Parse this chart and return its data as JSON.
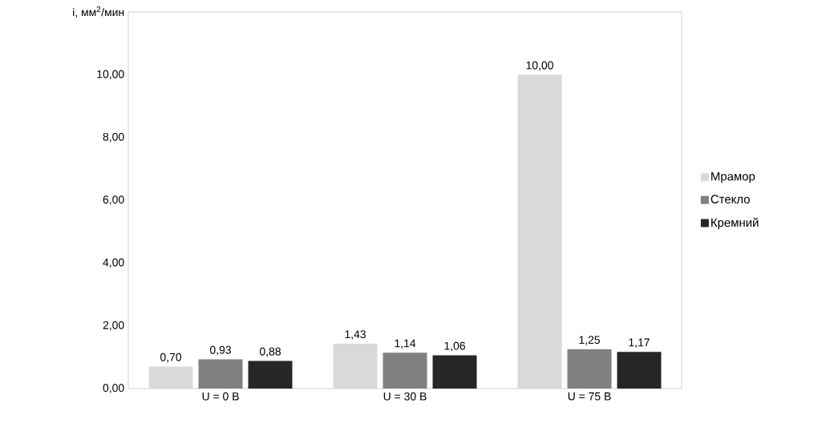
{
  "chart_data": {
    "type": "bar",
    "ylabel": "i, мм$^{2}$/мин",
    "categories": [
      "U = 0 В",
      "U = 30 В",
      "U = 75 В"
    ],
    "series": [
      {
        "name": "Мрамор",
        "color": "#d9d9d9",
        "values": [
          0.7,
          1.43,
          10.0
        ],
        "value_labels": [
          "0,70",
          "1,43",
          "10,00"
        ]
      },
      {
        "name": "Стекло",
        "color": "#808080",
        "values": [
          0.93,
          1.14,
          1.25
        ],
        "value_labels": [
          "0,93",
          "1,14",
          "1,25"
        ]
      },
      {
        "name": "Кремний",
        "color": "#262626",
        "values": [
          0.88,
          1.06,
          1.17
        ],
        "value_labels": [
          "0,88",
          "1,06",
          "1,17"
        ]
      }
    ],
    "ylim": [
      0,
      12
    ],
    "yticks": [
      {
        "value": 0,
        "label": "0,00"
      },
      {
        "value": 2,
        "label": "2,00"
      },
      {
        "value": 4,
        "label": "4,00"
      },
      {
        "value": 6,
        "label": "6,00"
      },
      {
        "value": 8,
        "label": "8,00"
      },
      {
        "value": 10,
        "label": "10,00"
      }
    ],
    "grid": false,
    "legend": "right"
  }
}
